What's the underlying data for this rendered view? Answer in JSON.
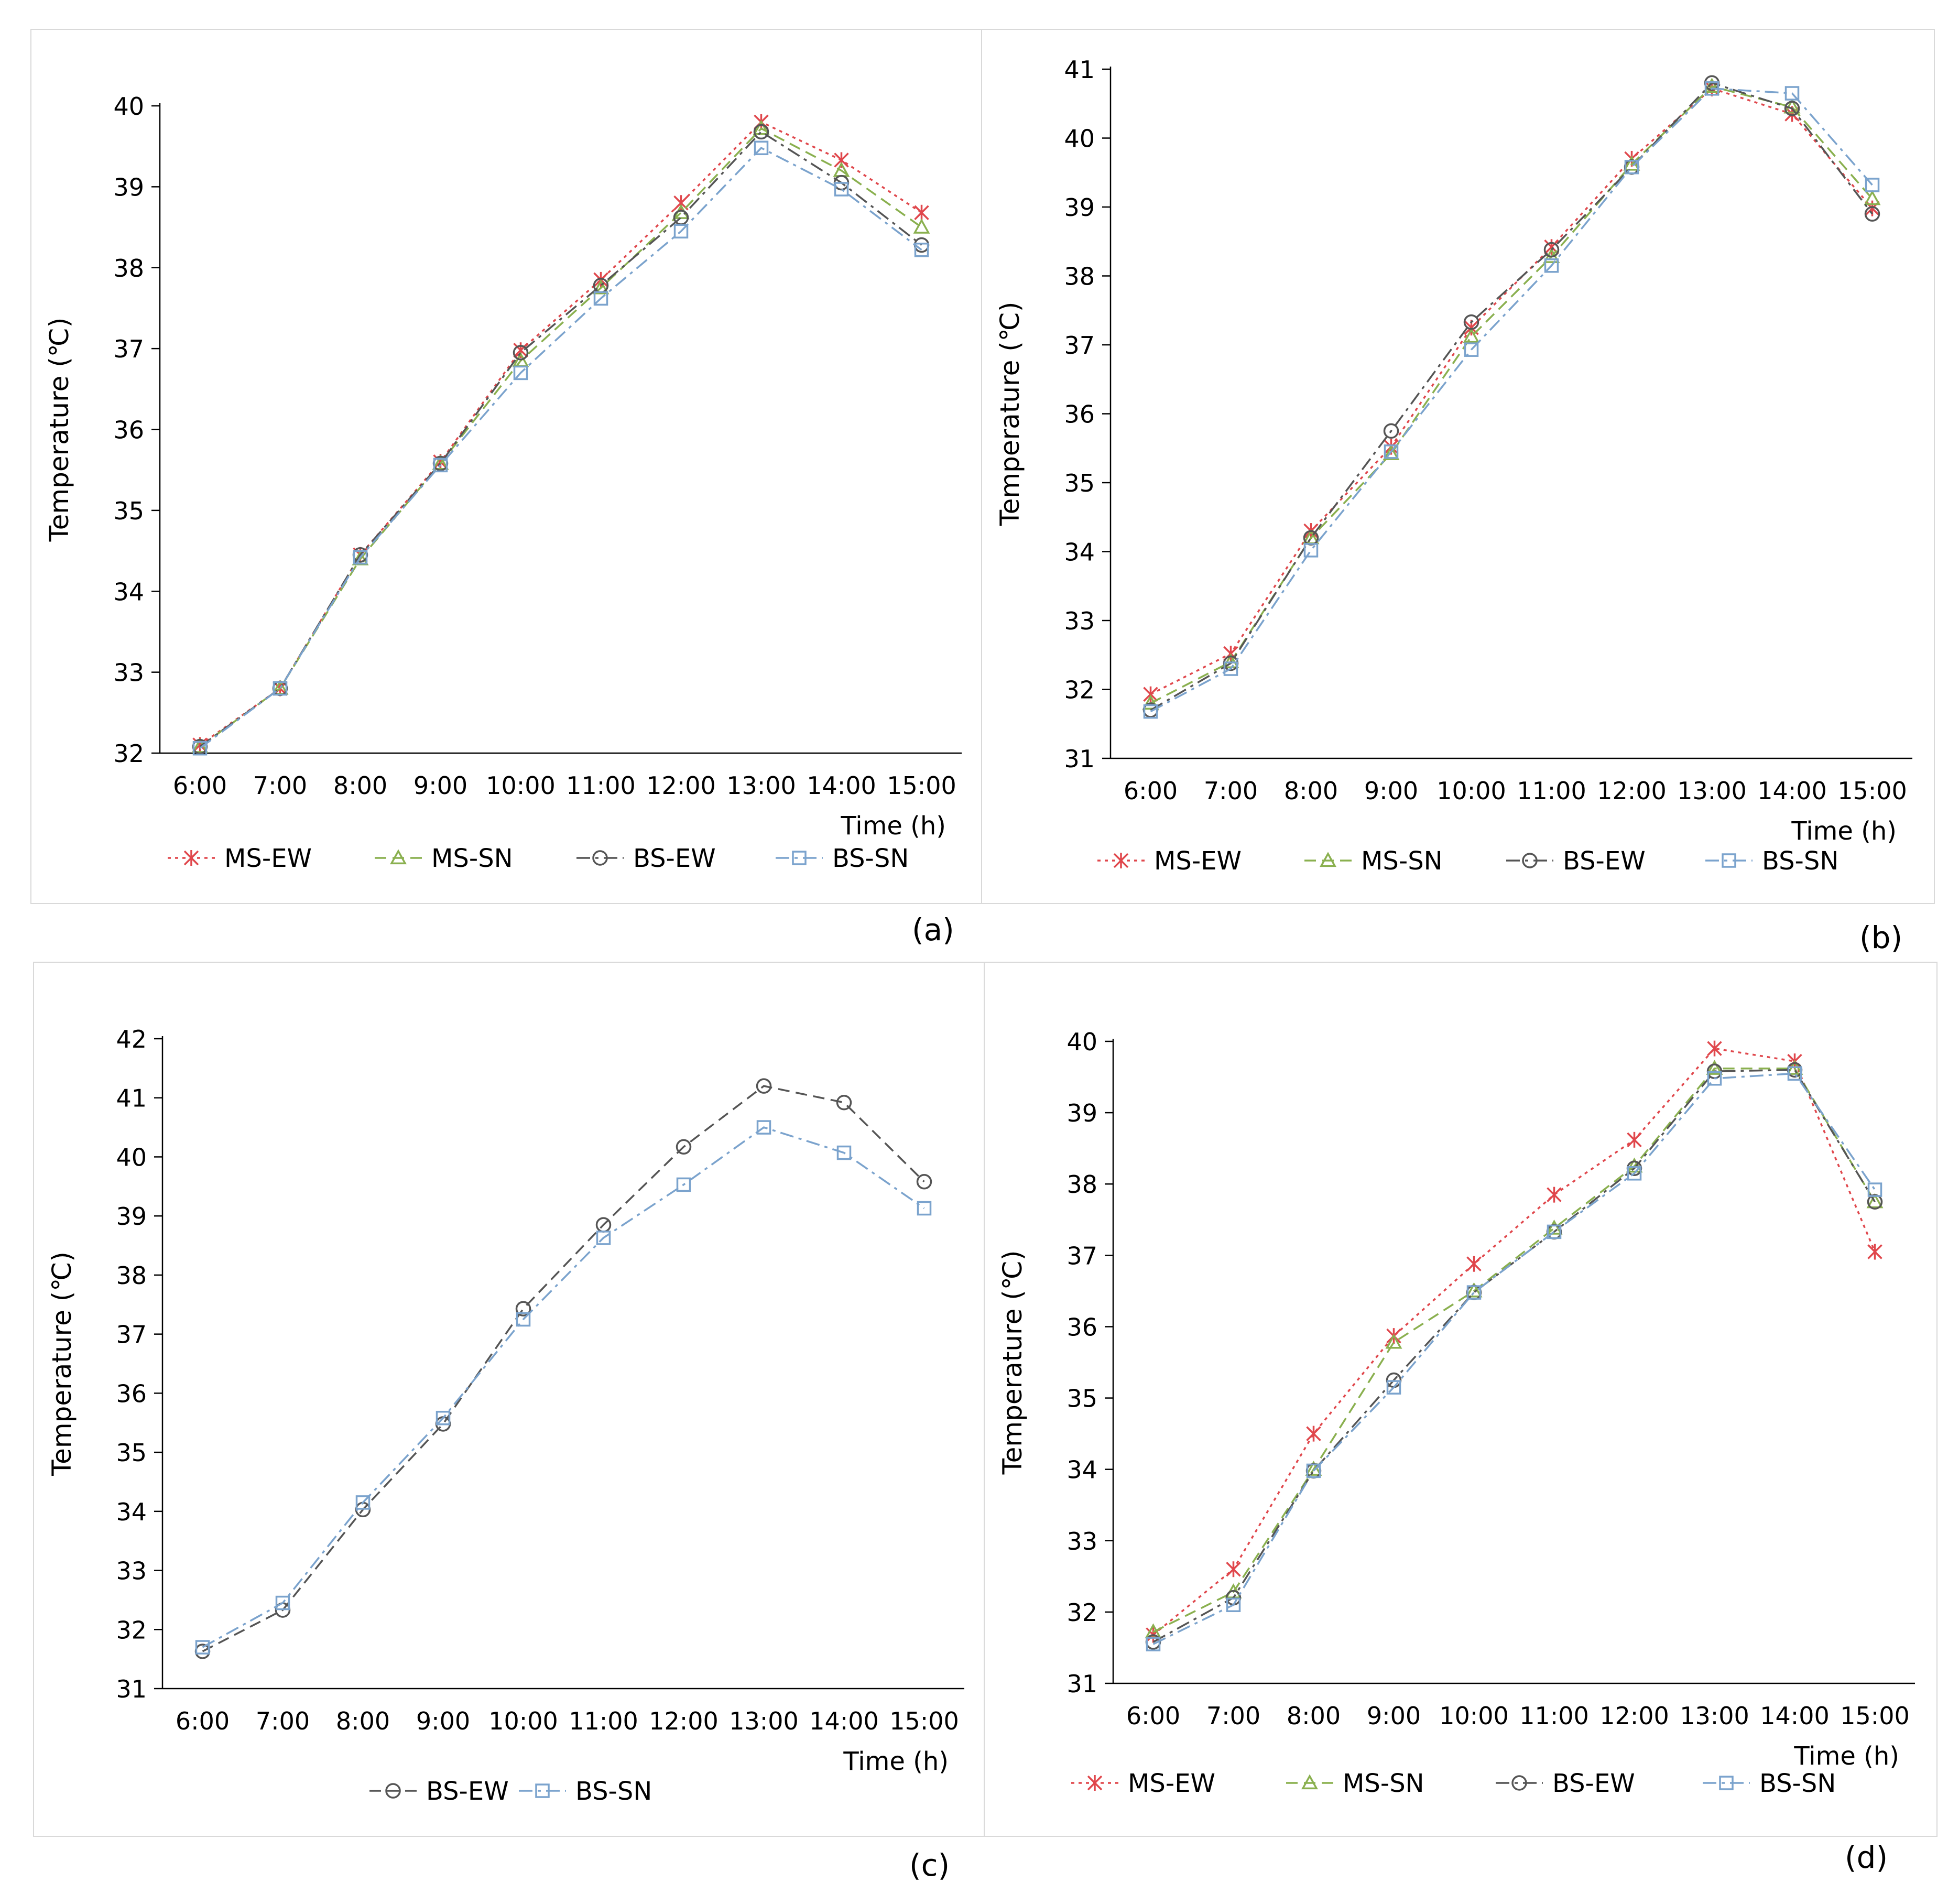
{
  "colors": {
    "MS-EW": "#e0474c",
    "MS-SN": "#8ab04f",
    "BS-EW": "#555555",
    "BS-SN": "#7ba3cd",
    "axis": "#000000",
    "panel_border": "#d9d9d9"
  },
  "chart_data": [
    {
      "type": "line",
      "panel_label": "(a)",
      "ylabel": "Temperature (℃)",
      "xlabel": "Time (h)",
      "categories": [
        "6:00",
        "7:00",
        "8:00",
        "9:00",
        "10:00",
        "11:00",
        "12:00",
        "13:00",
        "14:00",
        "15:00"
      ],
      "ylim": [
        32,
        40
      ],
      "yticks": [
        32,
        33,
        34,
        35,
        36,
        37,
        38,
        39,
        40
      ],
      "series": [
        {
          "name": "MS-EW",
          "marker": "x",
          "dash": "dot",
          "values": [
            32.1,
            32.8,
            34.45,
            35.6,
            36.98,
            37.85,
            38.8,
            39.8,
            39.33,
            38.68
          ]
        },
        {
          "name": "MS-SN",
          "marker": "triangle",
          "dash": "dash",
          "values": [
            32.08,
            32.8,
            34.4,
            35.58,
            36.85,
            37.75,
            38.68,
            39.72,
            39.2,
            38.5
          ]
        },
        {
          "name": "BS-EW",
          "marker": "circle",
          "dash": "dashdot",
          "values": [
            32.08,
            32.8,
            34.45,
            35.58,
            36.95,
            37.78,
            38.62,
            39.68,
            39.05,
            38.28
          ]
        },
        {
          "name": "BS-SN",
          "marker": "square",
          "dash": "dashdot",
          "values": [
            32.06,
            32.8,
            34.42,
            35.56,
            36.7,
            37.62,
            38.45,
            39.48,
            38.97,
            38.22
          ]
        }
      ]
    },
    {
      "type": "line",
      "panel_label": "(b)",
      "ylabel": "Temperature (℃)",
      "xlabel": "Time (h)",
      "categories": [
        "6:00",
        "7:00",
        "8:00",
        "9:00",
        "10:00",
        "11:00",
        "12:00",
        "13:00",
        "14:00",
        "15:00"
      ],
      "ylim": [
        31,
        41
      ],
      "yticks": [
        31,
        32,
        33,
        34,
        35,
        36,
        37,
        38,
        39,
        40,
        41
      ],
      "series": [
        {
          "name": "MS-EW",
          "marker": "x",
          "dash": "dot",
          "values": [
            31.93,
            32.52,
            34.3,
            35.52,
            37.25,
            38.42,
            39.7,
            40.72,
            40.35,
            38.98
          ]
        },
        {
          "name": "MS-SN",
          "marker": "triangle",
          "dash": "dash",
          "values": [
            31.8,
            32.4,
            34.2,
            35.42,
            37.12,
            38.28,
            39.62,
            40.75,
            40.45,
            39.12
          ]
        },
        {
          "name": "BS-EW",
          "marker": "circle",
          "dash": "dashdot",
          "values": [
            31.7,
            32.38,
            34.2,
            35.75,
            37.33,
            38.38,
            39.58,
            40.8,
            40.43,
            38.9
          ]
        },
        {
          "name": "BS-SN",
          "marker": "square",
          "dash": "dashdot",
          "values": [
            31.68,
            32.3,
            34.02,
            35.45,
            36.93,
            38.15,
            39.58,
            40.72,
            40.65,
            39.32
          ]
        }
      ]
    },
    {
      "type": "line",
      "panel_label": "(c)",
      "ylabel": "Temperature (℃)",
      "xlabel": "Time (h)",
      "categories": [
        "6:00",
        "7:00",
        "8:00",
        "9:00",
        "10:00",
        "11:00",
        "12:00",
        "13:00",
        "14:00",
        "15:00"
      ],
      "ylim": [
        31,
        42
      ],
      "yticks": [
        31,
        32,
        33,
        34,
        35,
        36,
        37,
        38,
        39,
        40,
        41,
        42
      ],
      "series": [
        {
          "name": "BS-EW",
          "marker": "circle",
          "dash": "dash",
          "values": [
            31.63,
            32.33,
            34.03,
            35.48,
            37.43,
            38.85,
            40.17,
            41.2,
            40.92,
            39.58
          ]
        },
        {
          "name": "BS-SN",
          "marker": "square",
          "dash": "dashdot",
          "values": [
            31.7,
            32.45,
            34.15,
            35.58,
            37.25,
            38.63,
            39.53,
            40.5,
            40.07,
            39.13
          ]
        }
      ]
    },
    {
      "type": "line",
      "panel_label": "(d)",
      "ylabel": "Temperature (℃)",
      "xlabel": "Time    (h)",
      "categories": [
        "6:00",
        "7:00",
        "8:00",
        "9:00",
        "10:00",
        "11:00",
        "12:00",
        "13:00",
        "14:00",
        "15:00"
      ],
      "ylim": [
        31,
        40
      ],
      "yticks": [
        31,
        32,
        33,
        34,
        35,
        36,
        37,
        38,
        39,
        40
      ],
      "series": [
        {
          "name": "MS-EW",
          "marker": "x",
          "dash": "dot",
          "values": [
            31.68,
            32.6,
            34.5,
            35.87,
            36.88,
            37.85,
            38.62,
            39.9,
            39.72,
            37.05
          ]
        },
        {
          "name": "MS-SN",
          "marker": "triangle",
          "dash": "dash",
          "values": [
            31.72,
            32.28,
            34.0,
            35.78,
            36.5,
            37.38,
            38.25,
            39.62,
            39.62,
            37.75
          ]
        },
        {
          "name": "BS-EW",
          "marker": "circle",
          "dash": "dashdot",
          "values": [
            31.58,
            32.2,
            33.98,
            35.25,
            36.48,
            37.33,
            38.22,
            39.58,
            39.6,
            37.75
          ]
        },
        {
          "name": "BS-SN",
          "marker": "square",
          "dash": "dashdot",
          "values": [
            31.55,
            32.1,
            33.98,
            35.15,
            36.48,
            37.33,
            38.15,
            39.48,
            39.55,
            37.92
          ]
        }
      ]
    }
  ]
}
